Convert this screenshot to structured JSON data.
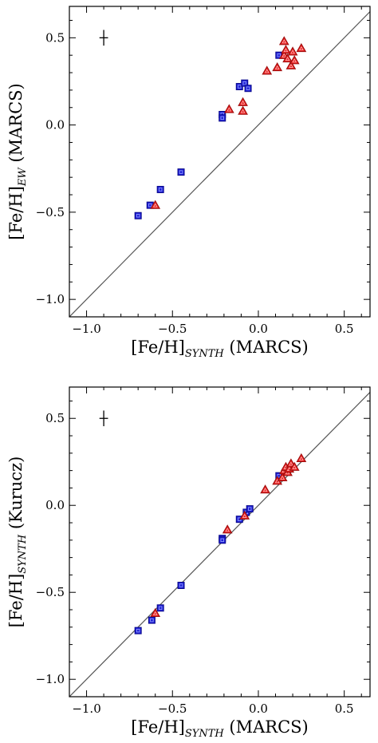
{
  "chart_data": [
    {
      "type": "scatter",
      "title": "",
      "xlabel": "[Fe/H]",
      "xlabel_sub": "SYNTH",
      "xlabel_suffix": " (MARCS)",
      "ylabel": "[Fe/H]",
      "ylabel_sub": "EW",
      "ylabel_suffix": " (MARCS)",
      "xlim": [
        -1.1,
        0.65
      ],
      "ylim": [
        -1.1,
        0.68
      ],
      "xticks": [
        -1.0,
        -0.5,
        0.0,
        0.5
      ],
      "xtick_labels": [
        "−1.0",
        "−0.5",
        "0.0",
        "0.5"
      ],
      "yticks": [
        -1.0,
        -0.5,
        0.0,
        0.5
      ],
      "ytick_labels": [
        "−1.0",
        "−0.5",
        "0.0",
        "0.5"
      ],
      "grid": false,
      "reference_line": "y = x",
      "error_cross": {
        "x": -0.9,
        "y": 0.5,
        "dx": 0.025,
        "dy": 0.045
      },
      "series": [
        {
          "marker": "square",
          "color": "#1f1fd6",
          "points": [
            {
              "x": -0.7,
              "y": -0.52
            },
            {
              "x": -0.63,
              "y": -0.46
            },
            {
              "x": -0.57,
              "y": -0.37
            },
            {
              "x": -0.45,
              "y": -0.27
            },
            {
              "x": -0.21,
              "y": 0.06
            },
            {
              "x": -0.21,
              "y": 0.04
            },
            {
              "x": -0.11,
              "y": 0.22
            },
            {
              "x": -0.08,
              "y": 0.24
            },
            {
              "x": -0.06,
              "y": 0.21
            },
            {
              "x": 0.12,
              "y": 0.4
            }
          ]
        },
        {
          "marker": "triangle",
          "color": "#e61e1e",
          "points": [
            {
              "x": -0.6,
              "y": -0.46
            },
            {
              "x": -0.17,
              "y": 0.09
            },
            {
              "x": -0.09,
              "y": 0.08
            },
            {
              "x": -0.09,
              "y": 0.13
            },
            {
              "x": 0.05,
              "y": 0.31
            },
            {
              "x": 0.11,
              "y": 0.33
            },
            {
              "x": 0.15,
              "y": 0.48
            },
            {
              "x": 0.15,
              "y": 0.4
            },
            {
              "x": 0.16,
              "y": 0.43
            },
            {
              "x": 0.17,
              "y": 0.38
            },
            {
              "x": 0.19,
              "y": 0.34
            },
            {
              "x": 0.2,
              "y": 0.42
            },
            {
              "x": 0.21,
              "y": 0.37
            },
            {
              "x": 0.25,
              "y": 0.44
            }
          ]
        }
      ]
    },
    {
      "type": "scatter",
      "title": "",
      "xlabel": "[Fe/H]",
      "xlabel_sub": "SYNTH",
      "xlabel_suffix": " (MARCS)",
      "ylabel": "[Fe/H]",
      "ylabel_sub": "SYNTH",
      "ylabel_suffix": " (Kurucz)",
      "xlim": [
        -1.1,
        0.65
      ],
      "ylim": [
        -1.1,
        0.68
      ],
      "xticks": [
        -1.0,
        -0.5,
        0.0,
        0.5
      ],
      "xtick_labels": [
        "−1.0",
        "−0.5",
        "0.0",
        "0.5"
      ],
      "yticks": [
        -1.0,
        -0.5,
        0.0,
        0.5
      ],
      "ytick_labels": [
        "−1.0",
        "−0.5",
        "0.0",
        "0.5"
      ],
      "grid": false,
      "reference_line": "y = x",
      "error_cross": {
        "x": -0.9,
        "y": 0.5,
        "dx": 0.025,
        "dy": 0.045
      },
      "series": [
        {
          "marker": "square",
          "color": "#1f1fd6",
          "points": [
            {
              "x": -0.7,
              "y": -0.72
            },
            {
              "x": -0.62,
              "y": -0.66
            },
            {
              "x": -0.57,
              "y": -0.59
            },
            {
              "x": -0.45,
              "y": -0.46
            },
            {
              "x": -0.21,
              "y": -0.19
            },
            {
              "x": -0.21,
              "y": -0.2
            },
            {
              "x": -0.11,
              "y": -0.08
            },
            {
              "x": -0.07,
              "y": -0.04
            },
            {
              "x": -0.05,
              "y": -0.02
            },
            {
              "x": 0.12,
              "y": 0.17
            }
          ]
        },
        {
          "marker": "triangle",
          "color": "#e61e1e",
          "points": [
            {
              "x": -0.6,
              "y": -0.62
            },
            {
              "x": -0.18,
              "y": -0.14
            },
            {
              "x": -0.08,
              "y": -0.06
            },
            {
              "x": 0.04,
              "y": 0.09
            },
            {
              "x": 0.11,
              "y": 0.14
            },
            {
              "x": 0.14,
              "y": 0.16
            },
            {
              "x": 0.15,
              "y": 0.2
            },
            {
              "x": 0.16,
              "y": 0.22
            },
            {
              "x": 0.17,
              "y": 0.19
            },
            {
              "x": 0.18,
              "y": 0.21
            },
            {
              "x": 0.19,
              "y": 0.24
            },
            {
              "x": 0.21,
              "y": 0.22
            },
            {
              "x": 0.25,
              "y": 0.27
            }
          ]
        }
      ]
    }
  ]
}
